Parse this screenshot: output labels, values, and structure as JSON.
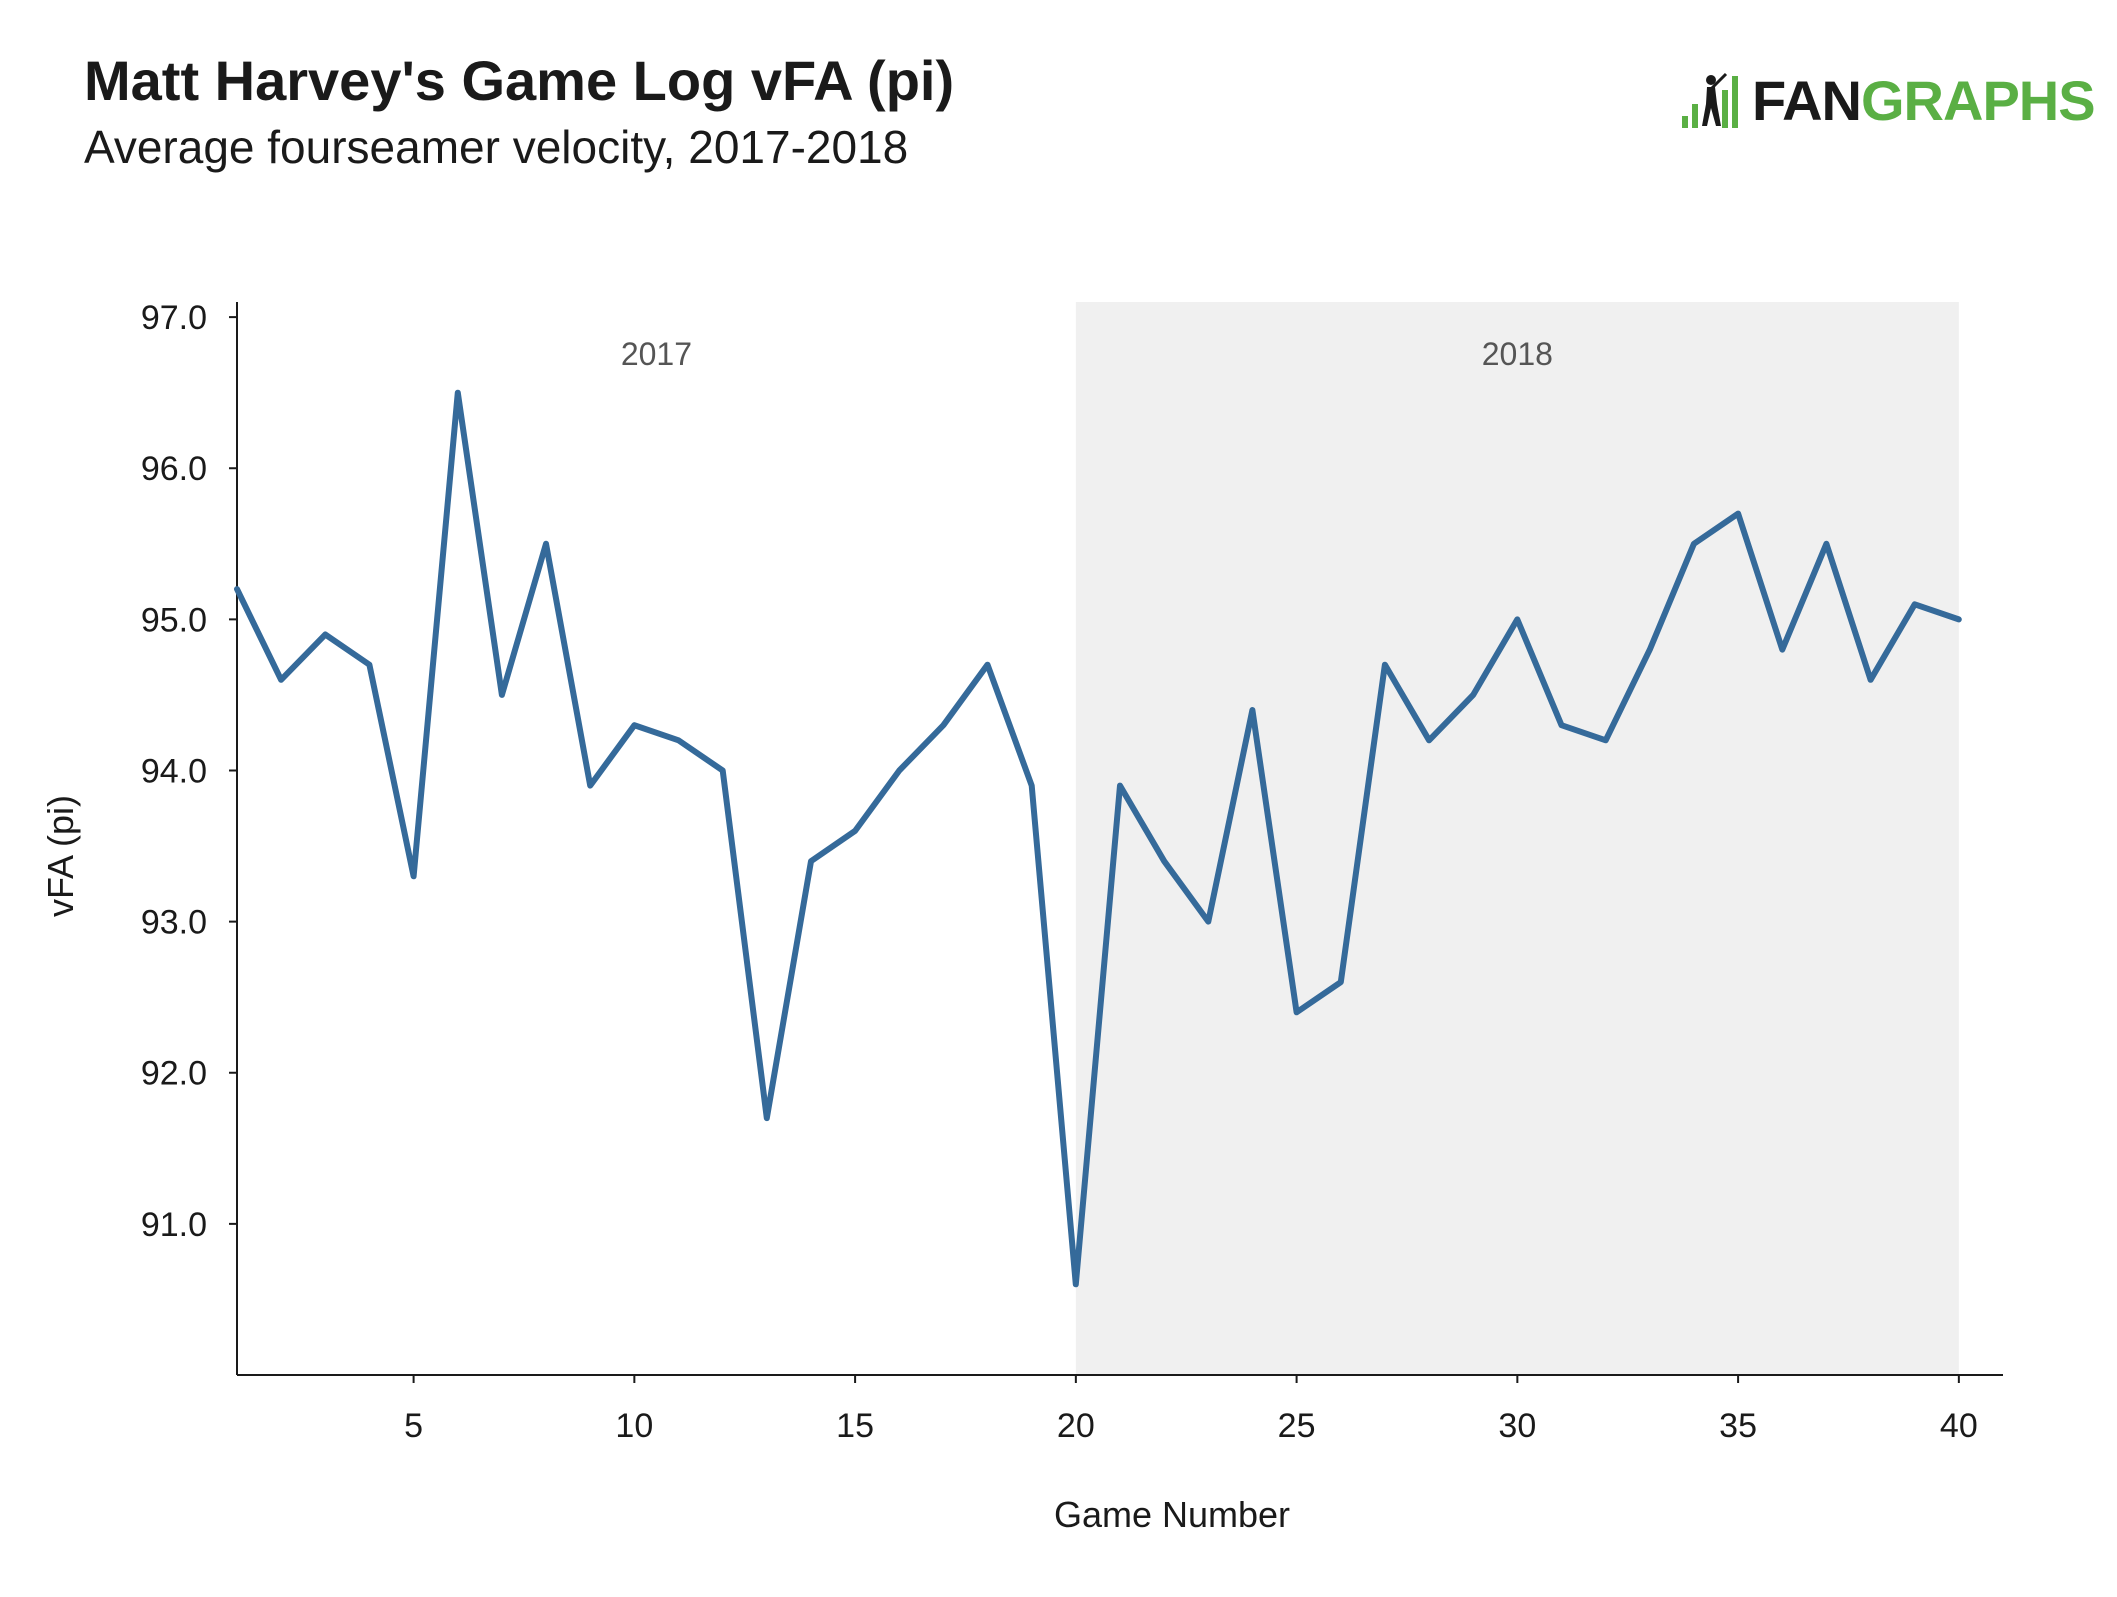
{
  "header": {
    "title": "Matt Harvey's Game Log vFA (pi)",
    "subtitle": "Average fourseamer velocity, 2017-2018"
  },
  "logo": {
    "text_dark": "FAN",
    "text_green": "GRAPHS",
    "icon": "batter-bars-icon",
    "green": "#5aaf44"
  },
  "chart_data": {
    "type": "line",
    "title": "Matt Harvey's Game Log vFA (pi)",
    "subtitle": "Average fourseamer velocity, 2017-2018",
    "xlabel": "Game Number",
    "ylabel": "vFA (pi)",
    "xlim": [
      1,
      41
    ],
    "ylim": [
      90,
      97.1
    ],
    "xticks": [
      5,
      10,
      15,
      20,
      25,
      30,
      35,
      40
    ],
    "yticks": [
      91.0,
      92.0,
      93.0,
      94.0,
      95.0,
      96.0,
      97.0
    ],
    "regions": [
      {
        "label": "2017",
        "x_start": 1,
        "x_end": 20,
        "color": "#ffffff"
      },
      {
        "label": "2018",
        "x_start": 20,
        "x_end": 40,
        "color": "#f0f0f0"
      }
    ],
    "line_color": "#356a9a",
    "grid": false,
    "x": [
      1,
      2,
      3,
      4,
      5,
      6,
      7,
      8,
      9,
      10,
      11,
      12,
      13,
      14,
      15,
      16,
      17,
      18,
      19,
      20,
      21,
      22,
      23,
      24,
      25,
      26,
      27,
      28,
      29,
      30,
      31,
      32,
      33,
      34,
      35,
      36,
      37,
      38,
      39,
      40
    ],
    "y": [
      95.2,
      94.6,
      94.9,
      94.7,
      93.3,
      96.5,
      94.5,
      95.5,
      93.9,
      94.3,
      94.2,
      94.0,
      91.7,
      93.4,
      93.6,
      94.0,
      94.3,
      94.7,
      93.9,
      90.6,
      93.9,
      93.4,
      93.0,
      94.4,
      92.4,
      92.6,
      94.7,
      94.2,
      94.5,
      95.0,
      94.3,
      94.2,
      94.8,
      95.5,
      95.7,
      94.8,
      95.5,
      94.6,
      95.1,
      95.0
    ]
  }
}
